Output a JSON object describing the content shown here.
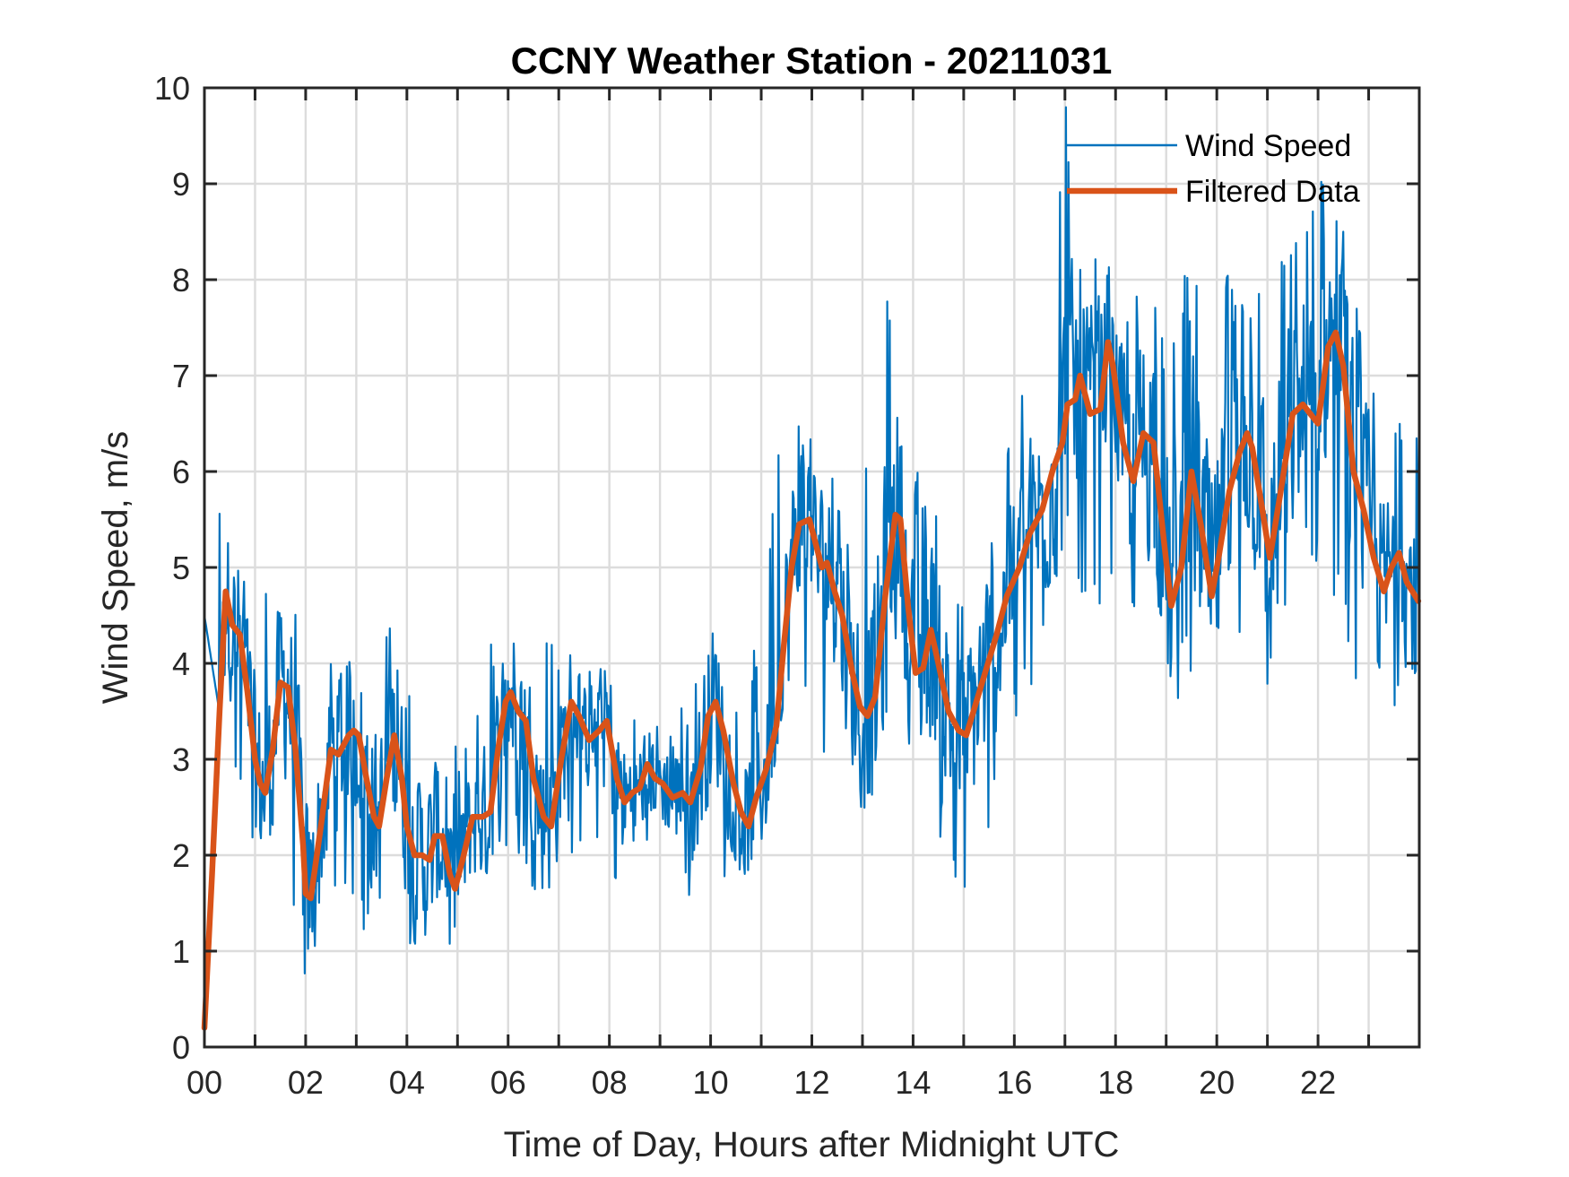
{
  "chart_data": {
    "type": "line",
    "title": "CCNY Weather Station - 20211031",
    "xlabel": "Time of Day, Hours after Midnight UTC",
    "ylabel": "Wind Speed, m/s",
    "xlim": [
      0,
      24
    ],
    "ylim": [
      0,
      10
    ],
    "grid": true,
    "legend_position": "top-right",
    "x_major_ticks": [
      0,
      1,
      2,
      3,
      4,
      5,
      6,
      7,
      8,
      9,
      10,
      11,
      12,
      13,
      14,
      15,
      16,
      17,
      18,
      19,
      20,
      21,
      22,
      23
    ],
    "x_tick_labels": [
      {
        "x": 0,
        "label": "00"
      },
      {
        "x": 2,
        "label": "02"
      },
      {
        "x": 4,
        "label": "04"
      },
      {
        "x": 6,
        "label": "06"
      },
      {
        "x": 8,
        "label": "08"
      },
      {
        "x": 10,
        "label": "10"
      },
      {
        "x": 12,
        "label": "12"
      },
      {
        "x": 14,
        "label": "14"
      },
      {
        "x": 16,
        "label": "16"
      },
      {
        "x": 18,
        "label": "18"
      },
      {
        "x": 20,
        "label": "20"
      },
      {
        "x": 22,
        "label": "22"
      }
    ],
    "y_ticks": [
      0,
      1,
      2,
      3,
      4,
      5,
      6,
      7,
      8,
      9,
      10
    ],
    "y_tick_labels": [
      "0",
      "1",
      "2",
      "3",
      "4",
      "5",
      "6",
      "7",
      "8",
      "9",
      "10"
    ],
    "series": [
      {
        "name": "Wind Speed",
        "color": "#0072BD",
        "style": "thin",
        "description": "raw high-frequency samples; envelope per half-hour [hour, min, max]",
        "envelope": [
          [
            0.0,
            4.5,
            6.2
          ],
          [
            0.5,
            2.8,
            5.6
          ],
          [
            1.0,
            1.9,
            4.8
          ],
          [
            1.5,
            2.3,
            5.6
          ],
          [
            2.0,
            0.3,
            3.8
          ],
          [
            2.5,
            1.7,
            4.4
          ],
          [
            3.0,
            1.0,
            4.1
          ],
          [
            3.5,
            1.5,
            4.75
          ],
          [
            4.0,
            0.95,
            3.8
          ],
          [
            4.5,
            0.2,
            3.3
          ],
          [
            5.0,
            1.2,
            3.2
          ],
          [
            5.5,
            1.6,
            4.1
          ],
          [
            6.0,
            2.0,
            4.8
          ],
          [
            6.5,
            1.6,
            4.5
          ],
          [
            7.0,
            1.7,
            4.4
          ],
          [
            7.5,
            2.2,
            4.0
          ],
          [
            8.0,
            1.3,
            4.0
          ],
          [
            8.5,
            1.8,
            3.6
          ],
          [
            9.0,
            1.9,
            3.5
          ],
          [
            9.5,
            1.5,
            3.7
          ],
          [
            10.0,
            1.8,
            4.9
          ],
          [
            10.5,
            1.7,
            4.0
          ],
          [
            11.0,
            2.0,
            4.5
          ],
          [
            11.5,
            3.8,
            7.1
          ],
          [
            12.0,
            3.5,
            6.5
          ],
          [
            12.5,
            2.6,
            5.8
          ],
          [
            13.0,
            2.2,
            5.7
          ],
          [
            13.5,
            3.2,
            8.3
          ],
          [
            14.0,
            2.8,
            6.1
          ],
          [
            14.5,
            1.6,
            5.8
          ],
          [
            15.0,
            1.6,
            5.0
          ],
          [
            15.5,
            2.0,
            5.6
          ],
          [
            16.0,
            3.3,
            6.6
          ],
          [
            16.5,
            3.9,
            7.4
          ],
          [
            17.0,
            4.8,
            9.9
          ],
          [
            17.5,
            4.4,
            8.4
          ],
          [
            18.0,
            5.0,
            8.1
          ],
          [
            18.5,
            3.8,
            8.0
          ],
          [
            19.0,
            2.95,
            7.6
          ],
          [
            19.5,
            3.5,
            8.2
          ],
          [
            20.0,
            3.9,
            8.4
          ],
          [
            20.5,
            3.8,
            7.9
          ],
          [
            21.0,
            3.3,
            8.0
          ],
          [
            21.5,
            4.4,
            8.9
          ],
          [
            22.0,
            4.8,
            9.15
          ],
          [
            22.5,
            4.4,
            8.5
          ],
          [
            23.0,
            2.75,
            7.0
          ],
          [
            23.5,
            3.5,
            6.5
          ],
          [
            23.98,
            3.6,
            6.5
          ]
        ]
      },
      {
        "name": "Filtered Data",
        "color": "#D95319",
        "style": "thick",
        "points": [
          [
            0.0,
            0.2
          ],
          [
            0.15,
            1.8
          ],
          [
            0.3,
            3.5
          ],
          [
            0.42,
            4.75
          ],
          [
            0.55,
            4.4
          ],
          [
            0.7,
            4.3
          ],
          [
            0.85,
            3.7
          ],
          [
            1.0,
            3.0
          ],
          [
            1.1,
            2.75
          ],
          [
            1.2,
            2.65
          ],
          [
            1.35,
            3.1
          ],
          [
            1.5,
            3.8
          ],
          [
            1.65,
            3.75
          ],
          [
            1.8,
            3.1
          ],
          [
            1.95,
            2.1
          ],
          [
            2.0,
            1.6
          ],
          [
            2.1,
            1.55
          ],
          [
            2.3,
            2.3
          ],
          [
            2.5,
            3.1
          ],
          [
            2.65,
            3.05
          ],
          [
            2.85,
            3.25
          ],
          [
            2.95,
            3.3
          ],
          [
            3.05,
            3.25
          ],
          [
            3.2,
            2.8
          ],
          [
            3.35,
            2.4
          ],
          [
            3.45,
            2.3
          ],
          [
            3.6,
            2.8
          ],
          [
            3.75,
            3.25
          ],
          [
            3.9,
            2.8
          ],
          [
            4.0,
            2.3
          ],
          [
            4.15,
            2.0
          ],
          [
            4.3,
            2.0
          ],
          [
            4.45,
            1.95
          ],
          [
            4.55,
            2.2
          ],
          [
            4.7,
            2.2
          ],
          [
            4.85,
            1.8
          ],
          [
            4.95,
            1.65
          ],
          [
            5.1,
            1.95
          ],
          [
            5.3,
            2.4
          ],
          [
            5.5,
            2.4
          ],
          [
            5.65,
            2.45
          ],
          [
            5.8,
            3.1
          ],
          [
            5.95,
            3.6
          ],
          [
            6.05,
            3.7
          ],
          [
            6.2,
            3.5
          ],
          [
            6.35,
            3.4
          ],
          [
            6.5,
            2.8
          ],
          [
            6.7,
            2.4
          ],
          [
            6.85,
            2.3
          ],
          [
            7.05,
            3.0
          ],
          [
            7.25,
            3.6
          ],
          [
            7.4,
            3.45
          ],
          [
            7.6,
            3.2
          ],
          [
            7.8,
            3.3
          ],
          [
            7.95,
            3.4
          ],
          [
            8.15,
            2.8
          ],
          [
            8.3,
            2.55
          ],
          [
            8.45,
            2.65
          ],
          [
            8.6,
            2.7
          ],
          [
            8.75,
            2.95
          ],
          [
            8.9,
            2.8
          ],
          [
            9.05,
            2.75
          ],
          [
            9.25,
            2.6
          ],
          [
            9.45,
            2.65
          ],
          [
            9.6,
            2.55
          ],
          [
            9.8,
            2.9
          ],
          [
            9.95,
            3.45
          ],
          [
            10.1,
            3.6
          ],
          [
            10.25,
            3.3
          ],
          [
            10.45,
            2.75
          ],
          [
            10.6,
            2.45
          ],
          [
            10.75,
            2.3
          ],
          [
            10.9,
            2.6
          ],
          [
            11.1,
            2.9
          ],
          [
            11.3,
            3.35
          ],
          [
            11.45,
            4.2
          ],
          [
            11.6,
            5.0
          ],
          [
            11.75,
            5.45
          ],
          [
            11.95,
            5.5
          ],
          [
            12.1,
            5.2
          ],
          [
            12.2,
            5.0
          ],
          [
            12.3,
            5.05
          ],
          [
            12.45,
            4.75
          ],
          [
            12.6,
            4.5
          ],
          [
            12.8,
            3.9
          ],
          [
            12.95,
            3.55
          ],
          [
            13.1,
            3.45
          ],
          [
            13.25,
            3.65
          ],
          [
            13.45,
            4.7
          ],
          [
            13.65,
            5.55
          ],
          [
            13.75,
            5.5
          ],
          [
            13.9,
            4.6
          ],
          [
            14.05,
            3.9
          ],
          [
            14.2,
            3.95
          ],
          [
            14.35,
            4.35
          ],
          [
            14.5,
            4.0
          ],
          [
            14.7,
            3.5
          ],
          [
            14.9,
            3.3
          ],
          [
            15.05,
            3.25
          ],
          [
            15.25,
            3.6
          ],
          [
            15.45,
            3.95
          ],
          [
            15.65,
            4.3
          ],
          [
            15.85,
            4.7
          ],
          [
            16.1,
            5.0
          ],
          [
            16.3,
            5.35
          ],
          [
            16.55,
            5.6
          ],
          [
            16.75,
            6.0
          ],
          [
            16.95,
            6.3
          ],
          [
            17.05,
            6.7
          ],
          [
            17.2,
            6.75
          ],
          [
            17.3,
            7.0
          ],
          [
            17.5,
            6.6
          ],
          [
            17.7,
            6.65
          ],
          [
            17.85,
            7.35
          ],
          [
            17.95,
            7.1
          ],
          [
            18.15,
            6.3
          ],
          [
            18.35,
            5.9
          ],
          [
            18.55,
            6.4
          ],
          [
            18.75,
            6.3
          ],
          [
            18.95,
            5.3
          ],
          [
            19.1,
            4.6
          ],
          [
            19.3,
            5.0
          ],
          [
            19.5,
            6.0
          ],
          [
            19.7,
            5.4
          ],
          [
            19.9,
            4.7
          ],
          [
            20.05,
            5.15
          ],
          [
            20.25,
            5.8
          ],
          [
            20.45,
            6.2
          ],
          [
            20.6,
            6.4
          ],
          [
            20.7,
            6.25
          ],
          [
            20.9,
            5.6
          ],
          [
            21.05,
            5.1
          ],
          [
            21.25,
            5.75
          ],
          [
            21.5,
            6.6
          ],
          [
            21.7,
            6.7
          ],
          [
            21.85,
            6.6
          ],
          [
            22.0,
            6.5
          ],
          [
            22.2,
            7.3
          ],
          [
            22.35,
            7.45
          ],
          [
            22.5,
            7.1
          ],
          [
            22.7,
            6.0
          ],
          [
            22.9,
            5.6
          ],
          [
            23.1,
            5.1
          ],
          [
            23.3,
            4.75
          ],
          [
            23.45,
            5.0
          ],
          [
            23.6,
            5.15
          ],
          [
            23.75,
            4.85
          ],
          [
            23.98,
            4.65
          ]
        ]
      }
    ]
  }
}
